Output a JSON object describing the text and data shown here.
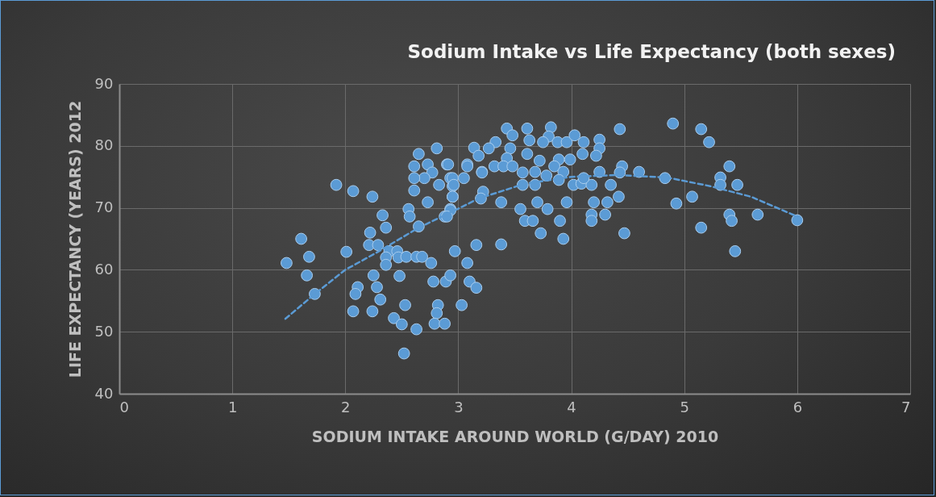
{
  "chart_data": {
    "type": "scatter",
    "title": "Sodium Intake vs Life Expectancy (both sexes)",
    "xlabel": "SODIUM INTAKE AROUND WORLD (G/DAY) 2010",
    "ylabel": "LIFE EXPECTANCY (YEARS) 2012",
    "xlim": [
      0,
      7
    ],
    "xticks": [
      0,
      1,
      2,
      3,
      4,
      5,
      6,
      7
    ],
    "ylim": [
      40,
      90
    ],
    "yticks": [
      40,
      50,
      60,
      70,
      80,
      90
    ],
    "grid": true,
    "series": [
      {
        "color": "#5b9bd5",
        "marker": "circle",
        "x": [
          1.48,
          1.61,
          1.68,
          1.66,
          1.73,
          1.92,
          2.07,
          2.24,
          2.33,
          2.36,
          2.22,
          2.21,
          2.29,
          2.39,
          2.36,
          2.36,
          2.46,
          2.47,
          2.54,
          2.63,
          2.68,
          2.76,
          2.48,
          2.25,
          2.11,
          2.09,
          2.28,
          2.31,
          2.07,
          2.24,
          2.43,
          2.5,
          2.53,
          2.63,
          2.52,
          2.82,
          2.81,
          2.79,
          2.88,
          3.03,
          2.78,
          2.89,
          2.93,
          3.1,
          3.16,
          3.08,
          3.16,
          2.97,
          2.01,
          2.56,
          2.57,
          2.65,
          2.88,
          2.93,
          2.95,
          2.73,
          2.61,
          2.83,
          2.95,
          3.05,
          3.21,
          2.93,
          2.61,
          2.73,
          2.77,
          2.65,
          2.81,
          2.9,
          3.08,
          3.14,
          2.7,
          2.61,
          3.43,
          3.48,
          3.61,
          3.82,
          3.8,
          3.63,
          3.75,
          3.88,
          3.96,
          4.03,
          4.11,
          4.25,
          4.25,
          4.43,
          4.1,
          4.22,
          3.33,
          3.27,
          3.18,
          3.46,
          3.61,
          3.43,
          3.32,
          3.4,
          3.48,
          3.72,
          3.89,
          3.99,
          3.85,
          3.93,
          3.08,
          2.91,
          3.21,
          3.57,
          3.68,
          3.78,
          3.89,
          3.57,
          3.68,
          4.02,
          4.09,
          4.18,
          4.11,
          4.25,
          4.45,
          4.43,
          4.35,
          4.6,
          4.83,
          2.95,
          2.96,
          2.95,
          3.22,
          3.2,
          3.38,
          3.55,
          3.7,
          3.79,
          3.96,
          4.2,
          4.32,
          4.42,
          3.59,
          3.66,
          3.9,
          4.18,
          4.18,
          4.3,
          3.73,
          3.93,
          4.47,
          2.93,
          2.9,
          3.38,
          4.9,
          5.15,
          5.22,
          5.4,
          5.32,
          5.32,
          5.47,
          5.07,
          4.93,
          5.4,
          5.42,
          5.65,
          6.0,
          5.15,
          5.45
        ],
        "values": [
          61.1,
          65,
          62.1,
          59.1,
          56.1,
          73.7,
          72.7,
          71.8,
          68.8,
          66.8,
          66,
          64,
          64,
          63,
          62,
          60.8,
          63,
          62,
          62.1,
          62.1,
          62.1,
          61.1,
          59,
          59.1,
          57.2,
          56.1,
          57.2,
          55.2,
          53.3,
          53.3,
          52.2,
          51.2,
          54.3,
          50.4,
          46.5,
          54.3,
          53,
          51.3,
          51.3,
          54.3,
          58.1,
          58.1,
          59.1,
          58.1,
          57.1,
          61.1,
          64,
          63,
          62.9,
          69.8,
          68.6,
          67,
          68.6,
          69.8,
          71.8,
          70.9,
          72.8,
          73.7,
          73.5,
          74.8,
          75.8,
          74.8,
          76.7,
          77,
          75.7,
          78.7,
          79.6,
          77,
          77,
          79.7,
          74.8,
          74.8,
          82.8,
          81.7,
          82.8,
          83,
          81.5,
          80.9,
          80.6,
          80.6,
          80.6,
          81.7,
          80.6,
          81,
          79.6,
          82.7,
          78.7,
          78.4,
          80.6,
          79.6,
          78.4,
          79.6,
          78.7,
          78,
          76.7,
          76.7,
          76.7,
          77.6,
          77.8,
          77.8,
          76.7,
          75.8,
          76.7,
          77,
          75.7,
          75.7,
          75.8,
          75.2,
          74.5,
          73.7,
          73.7,
          73.7,
          73.9,
          73.7,
          74.8,
          75.8,
          76.7,
          75.7,
          73.7,
          75.8,
          74.8,
          74.8,
          73.7,
          71.8,
          72.6,
          71.5,
          70.9,
          69.8,
          70.9,
          69.8,
          70.9,
          70.9,
          70.9,
          71.8,
          67.9,
          67.9,
          67.9,
          68.9,
          67.9,
          68.9,
          65.9,
          65,
          65.9,
          69.6,
          68.6,
          64.1,
          83.6,
          82.7,
          80.6,
          76.7,
          74.9,
          73.7,
          73.7,
          71.8,
          70.7,
          68.9,
          67.9,
          68.9,
          68,
          66.8,
          63
        ]
      },
      {
        "type": "line",
        "line_style": "dashed",
        "marker": "none",
        "color": "#5b9bd5",
        "x": [
          1.47,
          1.73,
          2.0,
          2.28,
          2.64,
          2.97,
          3.18,
          3.59,
          4.0,
          4.4,
          4.85,
          5.23,
          5.59,
          6.0
        ],
        "values": [
          52.1,
          56.1,
          60.0,
          62.8,
          66.7,
          69.6,
          71.5,
          73.9,
          75.0,
          75.3,
          74.9,
          73.5,
          71.8,
          68.6
        ]
      }
    ]
  }
}
